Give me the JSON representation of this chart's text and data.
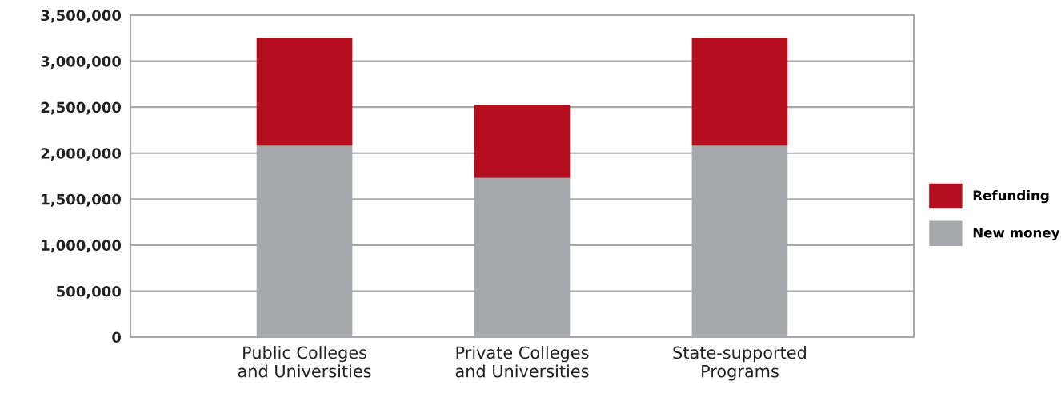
{
  "chart_data": {
    "type": "bar",
    "stacked": true,
    "categories": [
      "Public Colleges\nand Universities",
      "Private Colleges\nand Universities",
      "State-supported\nPrograms"
    ],
    "series": [
      {
        "name": "New money",
        "color": "#a7a8ac",
        "values": [
          2080000,
          1730000,
          2080000
        ]
      },
      {
        "name": "Refunding",
        "color": "#b50e1e",
        "values": [
          1170000,
          790000,
          1170000
        ]
      }
    ],
    "ylim": [
      0,
      3500000
    ],
    "yticks": [
      {
        "value": 0,
        "label": "0"
      },
      {
        "value": 500000,
        "label": "500,000"
      },
      {
        "value": 1000000,
        "label": "1,000,000"
      },
      {
        "value": 1500000,
        "label": "1,500,000"
      },
      {
        "value": 2000000,
        "label": "2,000,000"
      },
      {
        "value": 2500000,
        "label": "2,500,000"
      },
      {
        "value": 3000000,
        "label": "3,000,000"
      },
      {
        "value": 3500000,
        "label": "3,500,000"
      }
    ],
    "grid": "y",
    "legend": "right"
  }
}
